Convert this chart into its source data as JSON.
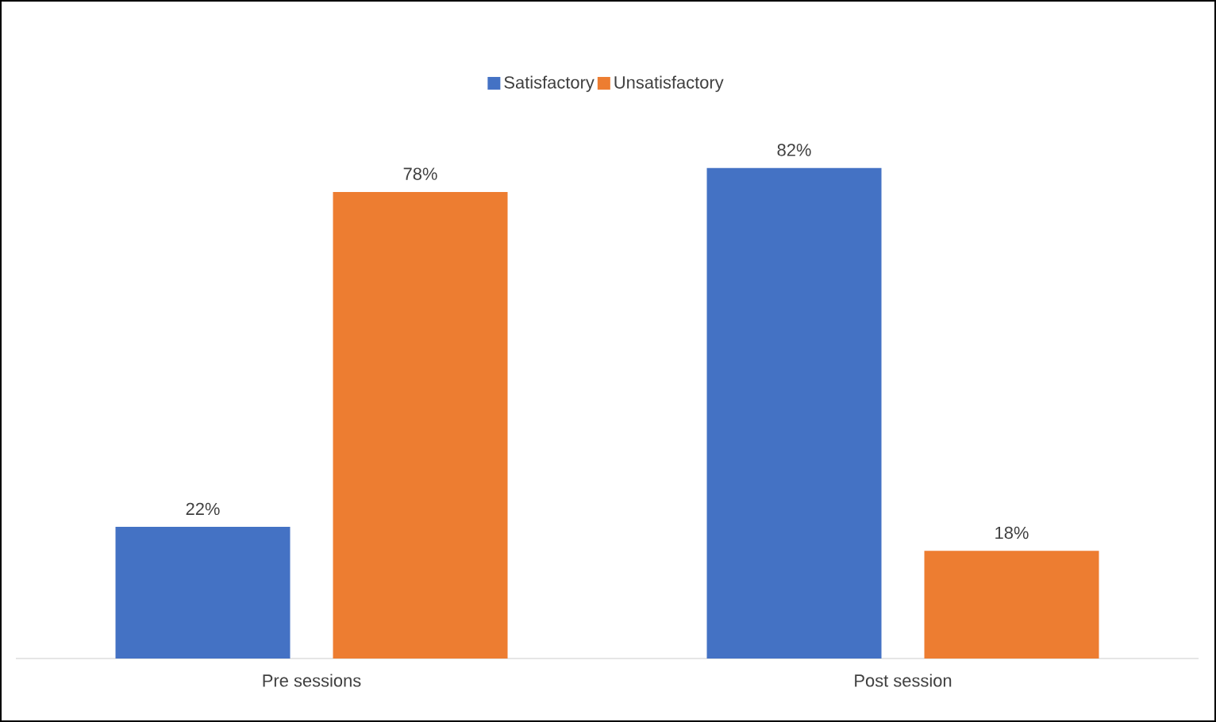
{
  "chart_data": {
    "type": "bar",
    "categories": [
      "Pre sessions",
      "Post session"
    ],
    "series": [
      {
        "name": "Satisfactory",
        "color": "#4472c4",
        "values": [
          22,
          82
        ],
        "value_labels": [
          "22%",
          "82%"
        ]
      },
      {
        "name": "Unsatisfactory",
        "color": "#ed7d31",
        "values": [
          78,
          18
        ],
        "value_labels": [
          "78%",
          "18%"
        ]
      }
    ],
    "legend": "top"
  }
}
